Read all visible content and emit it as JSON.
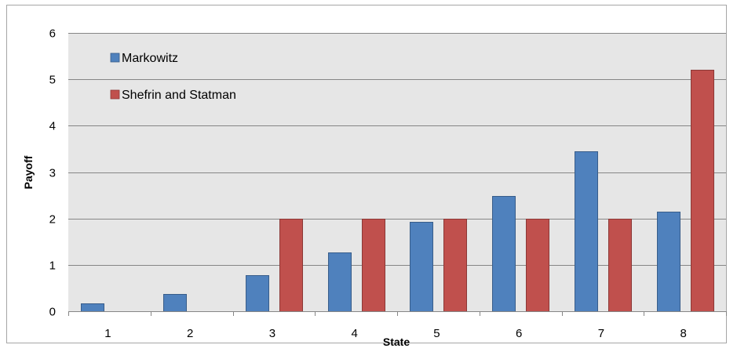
{
  "chart_data": {
    "type": "bar",
    "title": "",
    "xlabel": "State",
    "ylabel": "Payoff",
    "categories": [
      "1",
      "2",
      "3",
      "4",
      "5",
      "6",
      "7",
      "8"
    ],
    "ylim": [
      0,
      6
    ],
    "yticks": [
      "0",
      "1",
      "2",
      "3",
      "4",
      "5",
      "6"
    ],
    "grid": true,
    "legend_position": "top-left",
    "series": [
      {
        "name": "Markowitz",
        "color": "#4f81bd",
        "values": [
          0.17,
          0.38,
          0.78,
          1.26,
          1.93,
          2.49,
          3.45,
          2.14
        ]
      },
      {
        "name": "Shefrin and Statman",
        "color": "#c0504d",
        "values": [
          0,
          0,
          2.0,
          2.0,
          2.0,
          2.0,
          2.0,
          5.2
        ]
      }
    ],
    "plot_background": "#e6e6e6",
    "gridline_color": "#868686"
  }
}
